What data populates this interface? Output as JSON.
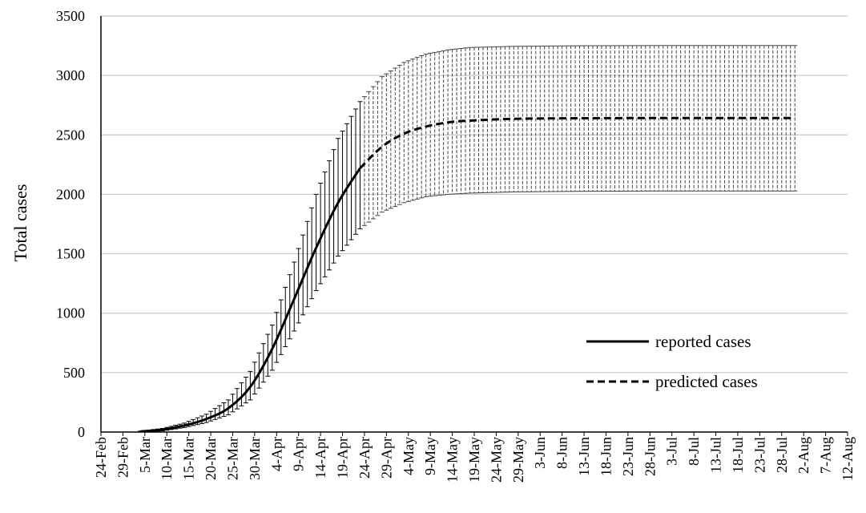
{
  "chart_data": {
    "type": "line",
    "title": "",
    "xlabel": "",
    "ylabel": "Total cases",
    "ylim": [
      0,
      3500
    ],
    "yticks": [
      0,
      500,
      1000,
      1500,
      2000,
      2500,
      3000,
      3500
    ],
    "xlim": [
      "2020-02-24",
      "2020-08-12"
    ],
    "xtick_labels": [
      "24-Feb",
      "29-Feb",
      "5-Mar",
      "10-Mar",
      "15-Mar",
      "20-Mar",
      "25-Mar",
      "30-Mar",
      "4-Apr",
      "9-Apr",
      "14-Apr",
      "19-Apr",
      "24-Apr",
      "29-Apr",
      "4-May",
      "9-May",
      "14-May",
      "19-May",
      "24-May",
      "29-May",
      "3-Jun",
      "8-Jun",
      "13-Jun",
      "18-Jun",
      "23-Jun",
      "28-Jun",
      "3-Jul",
      "8-Jul",
      "13-Jul",
      "18-Jul",
      "23-Jul",
      "28-Jul",
      "2-Aug",
      "7-Aug",
      "12-Aug"
    ],
    "grid": "horizontal",
    "legend_position": "bottom-right",
    "series": [
      {
        "name": "reported cases",
        "style": "solid",
        "color": "#000000",
        "x": [
          "2020-03-04",
          "2020-03-09",
          "2020-03-14",
          "2020-03-19",
          "2020-03-24",
          "2020-03-29",
          "2020-04-03",
          "2020-04-08",
          "2020-04-13",
          "2020-04-18",
          "2020-04-23"
        ],
        "y": [
          5,
          20,
          55,
          110,
          200,
          380,
          700,
          1120,
          1550,
          1930,
          2220
        ]
      },
      {
        "name": "predicted cases",
        "style": "dashed",
        "color": "#000000",
        "x": [
          "2020-04-23",
          "2020-04-28",
          "2020-05-03",
          "2020-05-08",
          "2020-05-13",
          "2020-05-18",
          "2020-05-28",
          "2020-06-12",
          "2020-07-01",
          "2020-07-20",
          "2020-07-31"
        ],
        "y": [
          2220,
          2400,
          2510,
          2570,
          2605,
          2620,
          2635,
          2640,
          2642,
          2642,
          2642
        ]
      }
    ],
    "error_bands": {
      "x": [
        "2020-03-04",
        "2020-03-09",
        "2020-03-14",
        "2020-03-19",
        "2020-03-24",
        "2020-03-29",
        "2020-04-03",
        "2020-04-08",
        "2020-04-13",
        "2020-04-18",
        "2020-04-23",
        "2020-04-28",
        "2020-05-03",
        "2020-05-08",
        "2020-05-13",
        "2020-05-18",
        "2020-05-28",
        "2020-06-12",
        "2020-07-01",
        "2020-07-20",
        "2020-07-31"
      ],
      "upper": [
        8,
        30,
        75,
        150,
        270,
        510,
        900,
        1430,
        2000,
        2470,
        2780,
        2990,
        3110,
        3180,
        3215,
        3235,
        3245,
        3250,
        3252,
        3252,
        3252
      ],
      "lower": [
        2,
        10,
        38,
        80,
        145,
        270,
        520,
        850,
        1190,
        1480,
        1710,
        1850,
        1930,
        1980,
        2000,
        2010,
        2020,
        2025,
        2028,
        2028,
        2028
      ]
    }
  }
}
